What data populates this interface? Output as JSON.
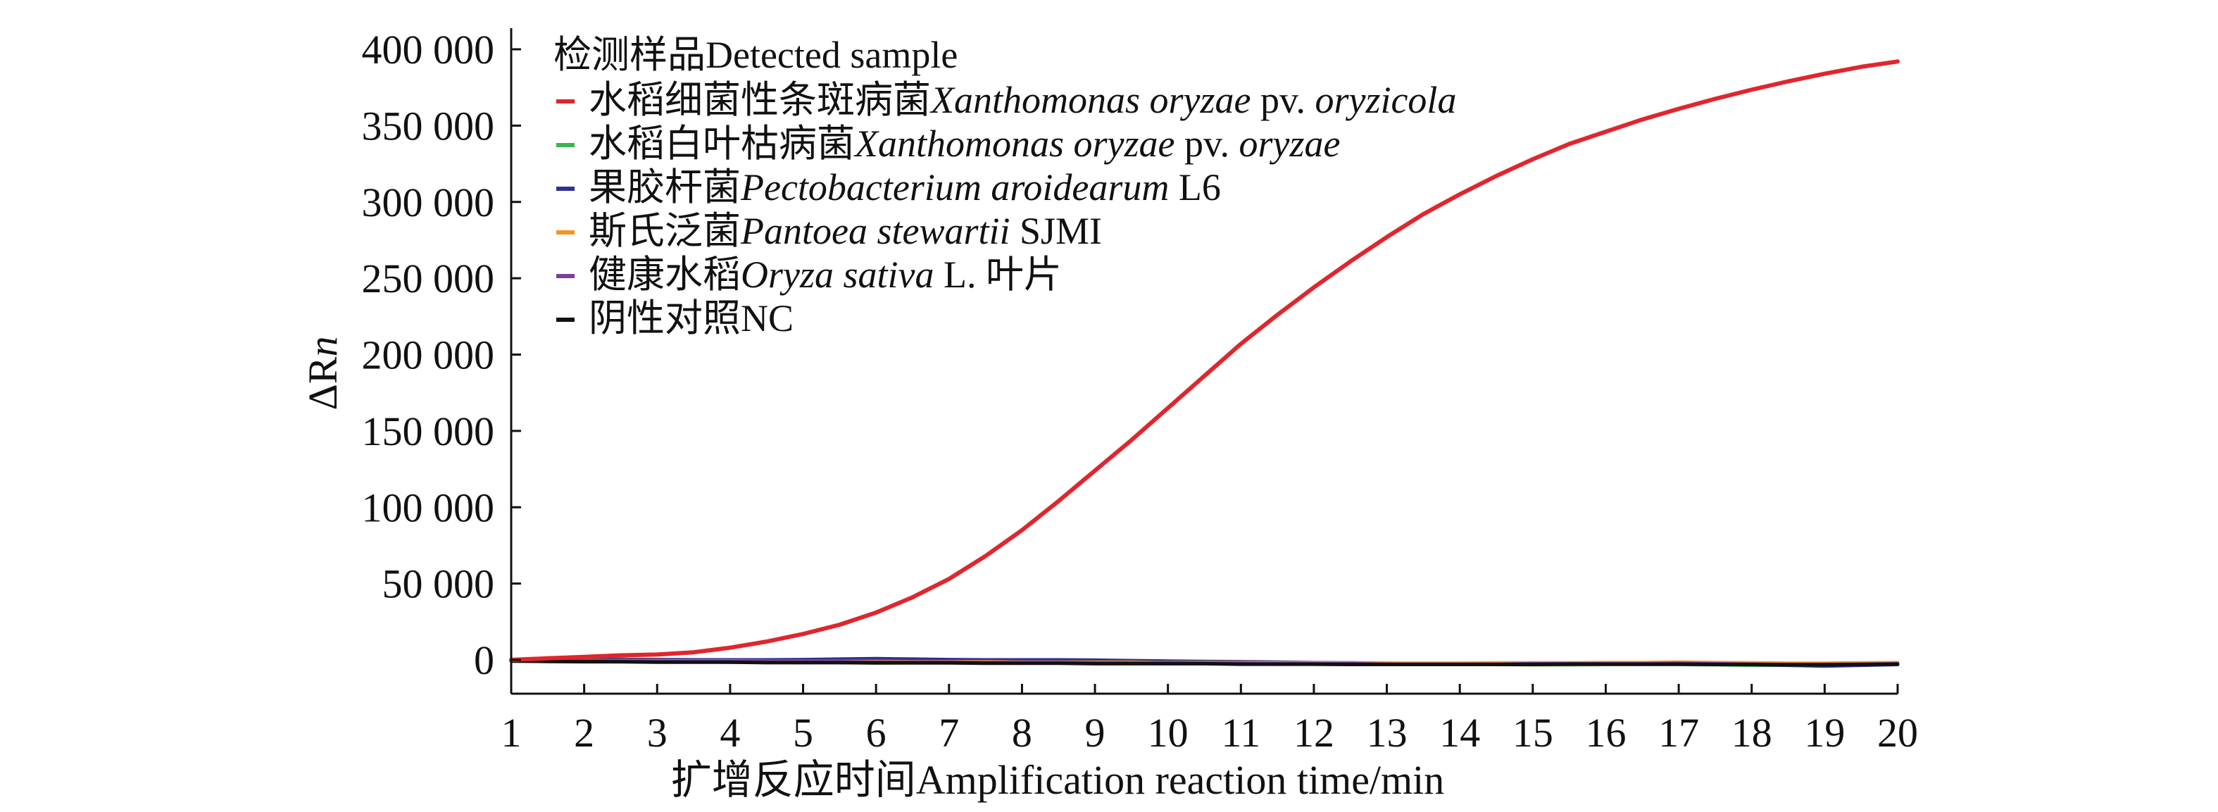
{
  "chart_data": {
    "type": "line",
    "title": "",
    "xlabel": "扩增反应时间Amplification reaction time/min",
    "ylabel": {
      "main": "ΔR",
      "italic": "n"
    },
    "xlim": [
      1,
      20
    ],
    "ylim": [
      -20000,
      400000
    ],
    "x_ticks": [
      1,
      2,
      3,
      4,
      5,
      6,
      7,
      8,
      9,
      10,
      11,
      12,
      13,
      14,
      15,
      16,
      17,
      18,
      19,
      20
    ],
    "x_tick_labels": [
      "1",
      "2",
      "3",
      "4",
      "5",
      "6",
      "7",
      "8",
      "9",
      "10",
      "11",
      "12",
      "13",
      "14",
      "15",
      "16",
      "17",
      "18",
      "19",
      "20"
    ],
    "y_ticks": [
      0,
      50000,
      100000,
      150000,
      200000,
      250000,
      300000,
      350000,
      400000
    ],
    "y_tick_labels": [
      "0",
      "50 000",
      "100 000",
      "150 000",
      "200 000",
      "250 000",
      "300 000",
      "350 000",
      "400 000"
    ],
    "grid": false,
    "legend_position": "top-left",
    "legend_title": "检测样品Detected sample",
    "x": [
      1,
      1.5,
      2,
      2.5,
      3,
      3.5,
      4,
      4.5,
      5,
      5.5,
      6,
      6.5,
      7,
      7.5,
      8,
      8.5,
      9,
      9.5,
      10,
      10.5,
      11,
      11.5,
      12,
      12.5,
      13,
      13.5,
      14,
      14.5,
      15,
      15.5,
      16,
      16.5,
      17,
      17.5,
      18,
      18.5,
      19,
      19.5,
      20
    ],
    "series": [
      {
        "name_parts": [
          {
            "text": "水稻细菌性条斑病菌",
            "italic": false
          },
          {
            "text": "Xanthomonas oryzae",
            "italic": true
          },
          {
            "text": " pv. ",
            "italic": false
          },
          {
            "text": "oryzicola",
            "italic": true
          }
        ],
        "color": "#e0262d",
        "values": [
          0,
          1000,
          2000,
          3000,
          3500,
          5000,
          8000,
          12000,
          17000,
          23000,
          31000,
          41000,
          53000,
          68000,
          85000,
          104000,
          124000,
          144000,
          165000,
          186000,
          207000,
          226000,
          244000,
          261000,
          277000,
          292000,
          305000,
          317000,
          328000,
          338000,
          346000,
          354000,
          361000,
          367500,
          373500,
          379000,
          384000,
          388500,
          392000
        ]
      },
      {
        "name_parts": [
          {
            "text": "水稻白叶枯病菌",
            "italic": false
          },
          {
            "text": "Xanthomonas oryzae",
            "italic": true
          },
          {
            "text": " pv. ",
            "italic": false
          },
          {
            "text": "oryzae",
            "italic": true
          }
        ],
        "color": "#3ab54a",
        "values": [
          -500,
          -800,
          -1000,
          -1200,
          -1000,
          -1200,
          -1500,
          -1500,
          -1800,
          -1800,
          -2000,
          -1800,
          -1500,
          -1800,
          -2000,
          -2000,
          -2200,
          -2200,
          -2500,
          -2500,
          -2500,
          -2800,
          -2800,
          -3000,
          -3000,
          -3000,
          -3000,
          -3000,
          -3200,
          -3200,
          -3000,
          -3000,
          -3000,
          -3200,
          -3500,
          -3500,
          -3500,
          -3200,
          -3000
        ]
      },
      {
        "name_parts": [
          {
            "text": "果胶杆菌",
            "italic": false
          },
          {
            "text": "Pectobacterium aroidearum",
            "italic": true
          },
          {
            "text": " L6",
            "italic": false
          }
        ],
        "color": "#2e3192",
        "values": [
          0,
          0,
          200,
          300,
          200,
          0,
          0,
          0,
          200,
          500,
          800,
          500,
          200,
          0,
          0,
          0,
          -200,
          -500,
          -800,
          -1000,
          -1200,
          -1500,
          -1800,
          -2000,
          -2200,
          -2500,
          -2500,
          -2500,
          -2500,
          -2200,
          -2000,
          -2000,
          -2000,
          -2500,
          -3000,
          -3500,
          -4000,
          -3500,
          -3000
        ]
      },
      {
        "name_parts": [
          {
            "text": "斯氏泛菌",
            "italic": false
          },
          {
            "text": "Pantoea stewartii",
            "italic": true
          },
          {
            "text": " SJMI",
            "italic": false
          }
        ],
        "color": "#f7941d",
        "values": [
          -200,
          -300,
          -500,
          -500,
          -500,
          -800,
          -800,
          -1000,
          -1000,
          -1000,
          -1000,
          -1200,
          -1200,
          -1200,
          -1500,
          -1500,
          -1500,
          -1500,
          -1800,
          -1800,
          -1800,
          -2000,
          -2000,
          -2200,
          -2200,
          -2200,
          -2200,
          -2000,
          -2000,
          -2000,
          -1800,
          -1800,
          -1500,
          -1800,
          -2000,
          -2200,
          -2200,
          -2000,
          -1800
        ]
      },
      {
        "name_parts": [
          {
            "text": "健康水稻",
            "italic": false
          },
          {
            "text": "Oryza sativa",
            "italic": true
          },
          {
            "text": " L. 叶片",
            "italic": false
          }
        ],
        "color": "#7b3f9e",
        "values": [
          -300,
          -500,
          -600,
          -800,
          -800,
          -1000,
          -1000,
          -1200,
          -1200,
          -1200,
          -1500,
          -1500,
          -1500,
          -1800,
          -1800,
          -1800,
          -2000,
          -2000,
          -2000,
          -2200,
          -2200,
          -2500,
          -2500,
          -2500,
          -2800,
          -2800,
          -2800,
          -2800,
          -2500,
          -2500,
          -2500,
          -2500,
          -2200,
          -2500,
          -2800,
          -3000,
          -3000,
          -2800,
          -2500
        ]
      },
      {
        "name_parts": [
          {
            "text": "阴性对照NC",
            "italic": false
          }
        ],
        "color": "#111111",
        "values": [
          -800,
          -1000,
          -1200,
          -1200,
          -1500,
          -1500,
          -1500,
          -1800,
          -1800,
          -1800,
          -2000,
          -2000,
          -2000,
          -2200,
          -2200,
          -2200,
          -2500,
          -2500,
          -2500,
          -2500,
          -2800,
          -2800,
          -2800,
          -3000,
          -3000,
          -3000,
          -3000,
          -3000,
          -3000,
          -2800,
          -2800,
          -2800,
          -2800,
          -3000,
          -3000,
          -3200,
          -3200,
          -3000,
          -2800
        ]
      }
    ]
  }
}
